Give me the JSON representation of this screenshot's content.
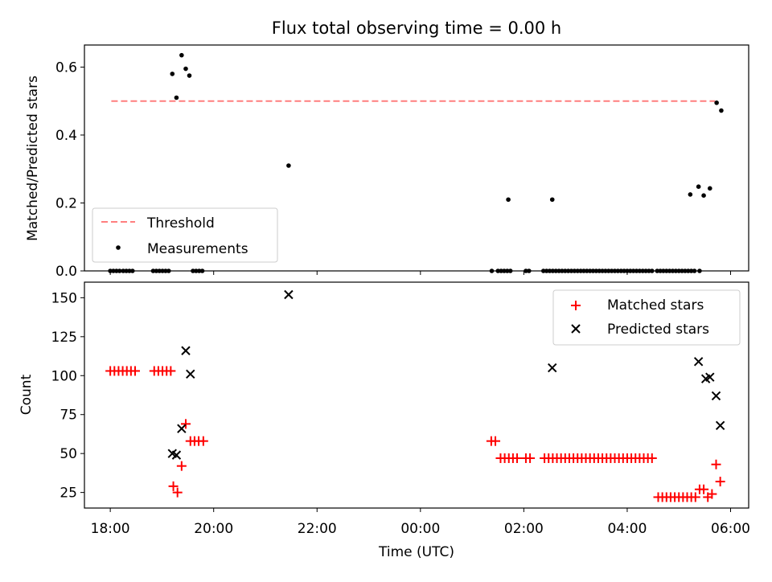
{
  "chart_data": [
    {
      "type": "scatter",
      "title": "Flux total observing time = 0.00 h",
      "ylabel": "Matched/Predicted stars",
      "ylim": [
        0,
        0.665
      ],
      "yticks": [
        "0.0",
        "0.2",
        "0.4",
        "0.6"
      ],
      "xlim_hours": [
        17.5,
        30.35
      ],
      "legend_position": "lower-left",
      "threshold": {
        "name": "Threshold",
        "value": 0.5,
        "x_start": 18.02,
        "x_end": 29.7,
        "color": "#ff7f7f"
      },
      "series": [
        {
          "name": "Measurements",
          "color": "#000000",
          "x": [
            19.2,
            19.28,
            19.38,
            19.46,
            19.53,
            21.45,
            25.7,
            29.73,
            29.82,
            29.22,
            29.38,
            29.48,
            29.6,
            26.55
          ],
          "values": [
            0.58,
            0.51,
            0.635,
            0.595,
            0.575,
            0.31,
            0.21,
            0.495,
            0.472,
            0.225,
            0.248,
            0.222,
            0.243,
            0.21
          ],
          "zero_x": [
            18.0,
            18.06,
            18.12,
            18.18,
            18.25,
            18.31,
            18.37,
            18.43,
            18.83,
            18.89,
            18.95,
            19.01,
            19.07,
            19.13,
            19.6,
            19.66,
            19.72,
            19.78,
            25.38,
            25.5,
            25.56,
            25.62,
            25.68,
            25.74,
            26.04,
            26.1,
            26.38,
            26.44,
            26.5,
            26.56,
            26.62,
            26.68,
            26.74,
            26.8,
            26.86,
            26.92,
            26.98,
            27.04,
            27.1,
            27.16,
            27.22,
            27.28,
            27.34,
            27.4,
            27.46,
            27.52,
            27.58,
            27.64,
            27.7,
            27.76,
            27.82,
            27.88,
            27.94,
            28.0,
            28.06,
            28.12,
            28.18,
            28.24,
            28.3,
            28.36,
            28.42,
            28.48,
            28.58,
            28.64,
            28.7,
            28.76,
            28.82,
            28.88,
            28.94,
            29.0,
            29.06,
            29.12,
            29.18,
            29.24,
            29.3,
            29.4
          ]
        }
      ]
    },
    {
      "type": "scatter",
      "title": "",
      "xlabel": "Time (UTC)",
      "ylabel": "Count",
      "ylim": [
        15,
        160
      ],
      "yticks": [
        "25",
        "50",
        "75",
        "100",
        "125",
        "150"
      ],
      "xlim_hours": [
        17.5,
        30.35
      ],
      "xticks": [
        "18:00",
        "20:00",
        "22:00",
        "00:00",
        "02:00",
        "04:00",
        "06:00"
      ],
      "legend_position": "upper-right",
      "series": [
        {
          "name": "Matched stars",
          "marker": "plus",
          "color": "#ff0000",
          "x": [
            18.0,
            18.08,
            18.16,
            18.24,
            18.32,
            18.4,
            18.48,
            18.85,
            18.93,
            19.01,
            19.09,
            19.17,
            19.22,
            19.3,
            19.38,
            19.46,
            19.55,
            19.63,
            19.71,
            19.8,
            25.37,
            25.45,
            25.55,
            25.63,
            25.71,
            25.79,
            25.87,
            26.04,
            26.12,
            26.4,
            26.48,
            26.56,
            26.64,
            26.72,
            26.8,
            26.88,
            26.96,
            27.04,
            27.12,
            27.2,
            27.28,
            27.36,
            27.44,
            27.52,
            27.6,
            27.68,
            27.76,
            27.84,
            27.92,
            28.0,
            28.08,
            28.16,
            28.24,
            28.32,
            28.4,
            28.48,
            28.6,
            28.68,
            28.76,
            28.84,
            28.92,
            29.0,
            29.08,
            29.16,
            29.24,
            29.32,
            29.4,
            29.48,
            29.56,
            29.64,
            29.72,
            29.8
          ],
          "values": [
            103,
            103,
            103,
            103,
            103,
            103,
            103,
            103,
            103,
            103,
            103,
            103,
            29,
            25,
            42,
            69,
            58,
            58,
            58,
            58,
            58,
            58,
            47,
            47,
            47,
            47,
            47,
            47,
            47,
            47,
            47,
            47,
            47,
            47,
            47,
            47,
            47,
            47,
            47,
            47,
            47,
            47,
            47,
            47,
            47,
            47,
            47,
            47,
            47,
            47,
            47,
            47,
            47,
            47,
            47,
            47,
            22,
            22,
            22,
            22,
            22,
            22,
            22,
            22,
            22,
            22,
            27,
            27,
            22,
            24,
            43,
            32
          ]
        },
        {
          "name": "Predicted stars",
          "marker": "x",
          "color": "#000000",
          "x": [
            19.2,
            19.28,
            19.38,
            19.46,
            19.55,
            21.45,
            26.55,
            29.38,
            29.52,
            29.6,
            29.72,
            29.8
          ],
          "values": [
            50,
            49,
            66,
            116,
            101,
            152,
            105,
            109,
            98,
            99,
            87,
            68
          ]
        }
      ]
    }
  ]
}
